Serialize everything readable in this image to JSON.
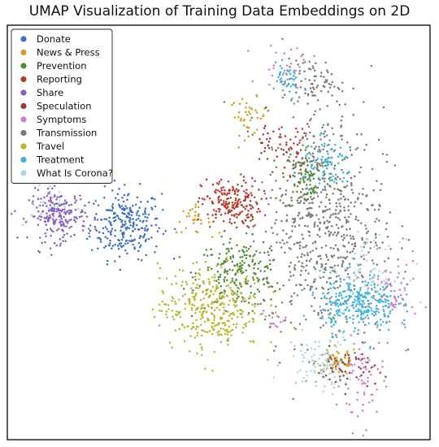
{
  "chart_data": {
    "type": "scatter",
    "title": "UMAP Visualization of Training Data Embeddings on 2D",
    "xlabel": "",
    "ylabel": "",
    "xlim": [
      0,
      100
    ],
    "ylim": [
      0,
      100
    ],
    "grid": false,
    "axis_ticks": false,
    "legend_position": "top-left",
    "series": [
      {
        "name": "Donate",
        "color": "#3a6fc4",
        "clusters": [
          {
            "cx": 28,
            "cy": 52,
            "sx": 4.2,
            "sy": 4.2,
            "n": 260
          }
        ]
      },
      {
        "name": "News & Press",
        "color": "#d89b1a",
        "clusters": [
          {
            "cx": 57,
            "cy": 78,
            "sx": 2.2,
            "sy": 2.2,
            "n": 40
          },
          {
            "cx": 44,
            "cy": 53,
            "sx": 2.0,
            "sy": 1.6,
            "n": 30
          },
          {
            "cx": 78,
            "cy": 19,
            "sx": 2.5,
            "sy": 1.8,
            "n": 60
          }
        ]
      },
      {
        "name": "Prevention",
        "color": "#4f8e32",
        "clusters": [
          {
            "cx": 55,
            "cy": 40,
            "sx": 5.0,
            "sy": 4.0,
            "n": 220
          },
          {
            "cx": 71,
            "cy": 63,
            "sx": 3.0,
            "sy": 4.0,
            "n": 110
          }
        ]
      },
      {
        "name": "Reporting",
        "color": "#b8392a",
        "clusters": [
          {
            "cx": 53,
            "cy": 57,
            "sx": 3.5,
            "sy": 3.0,
            "n": 200
          },
          {
            "cx": 68,
            "cy": 70,
            "sx": 1.8,
            "sy": 3.0,
            "n": 40
          }
        ]
      },
      {
        "name": "Share",
        "color": "#8a5cc4",
        "clusters": [
          {
            "cx": 12,
            "cy": 54,
            "sx": 3.4,
            "sy": 3.0,
            "n": 210
          }
        ]
      },
      {
        "name": "Speculation",
        "color": "#9a3b3b",
        "clusters": [
          {
            "cx": 80,
            "cy": 17,
            "sx": 3.5,
            "sy": 2.5,
            "n": 60
          },
          {
            "cx": 62,
            "cy": 72,
            "sx": 2.0,
            "sy": 3.0,
            "n": 30
          }
        ]
      },
      {
        "name": "Symptoms",
        "color": "#d678cf",
        "clusters": [
          {
            "cx": 91,
            "cy": 34,
            "sx": 3.0,
            "sy": 5.0,
            "n": 70
          },
          {
            "cx": 84,
            "cy": 14,
            "sx": 2.5,
            "sy": 6.0,
            "n": 60
          },
          {
            "cx": 66,
            "cy": 90,
            "sx": 3.0,
            "sy": 3.0,
            "n": 30
          },
          {
            "cx": 63,
            "cy": 29,
            "sx": 1.5,
            "sy": 1.2,
            "n": 15
          }
        ]
      },
      {
        "name": "Transmission",
        "color": "#7a7a7a",
        "clusters": [
          {
            "cx": 75,
            "cy": 52,
            "sx": 7.0,
            "sy": 14.0,
            "n": 650
          },
          {
            "cx": 72,
            "cy": 86,
            "sx": 3.5,
            "sy": 3.0,
            "n": 80
          }
        ]
      },
      {
        "name": "Travel",
        "color": "#b6b82a",
        "clusters": [
          {
            "cx": 48,
            "cy": 32,
            "sx": 6.0,
            "sy": 5.0,
            "n": 340
          }
        ]
      },
      {
        "name": "Treatment",
        "color": "#3cb4d8",
        "clusters": [
          {
            "cx": 83,
            "cy": 33,
            "sx": 4.5,
            "sy": 3.5,
            "n": 300
          },
          {
            "cx": 76,
            "cy": 66,
            "sx": 3.0,
            "sy": 3.0,
            "n": 80
          },
          {
            "cx": 66,
            "cy": 86,
            "sx": 2.0,
            "sy": 2.5,
            "n": 40
          }
        ]
      },
      {
        "name": "What Is Corona?",
        "color": "#a6d8ea",
        "clusters": [
          {
            "cx": 74,
            "cy": 19,
            "sx": 4.0,
            "sy": 3.5,
            "n": 90
          },
          {
            "cx": 85,
            "cy": 40,
            "sx": 4.0,
            "sy": 4.0,
            "n": 80
          },
          {
            "cx": 10,
            "cy": 57,
            "sx": 3.0,
            "sy": 3.0,
            "n": 30
          }
        ]
      }
    ]
  }
}
